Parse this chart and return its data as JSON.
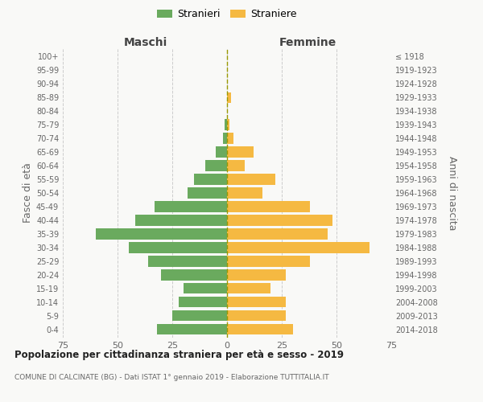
{
  "age_groups": [
    "100+",
    "95-99",
    "90-94",
    "85-89",
    "80-84",
    "75-79",
    "70-74",
    "65-69",
    "60-64",
    "55-59",
    "50-54",
    "45-49",
    "40-44",
    "35-39",
    "30-34",
    "25-29",
    "20-24",
    "15-19",
    "10-14",
    "5-9",
    "0-4"
  ],
  "birth_years": [
    "≤ 1918",
    "1919-1923",
    "1924-1928",
    "1929-1933",
    "1934-1938",
    "1939-1943",
    "1944-1948",
    "1949-1953",
    "1954-1958",
    "1959-1963",
    "1964-1968",
    "1969-1973",
    "1974-1978",
    "1979-1983",
    "1984-1988",
    "1989-1993",
    "1994-1998",
    "1999-2003",
    "2004-2008",
    "2009-2013",
    "2014-2018"
  ],
  "maschi": [
    0,
    0,
    0,
    0,
    0,
    1,
    2,
    5,
    10,
    15,
    18,
    33,
    42,
    60,
    45,
    36,
    30,
    20,
    22,
    25,
    32
  ],
  "femmine": [
    0,
    0,
    0,
    2,
    0,
    1,
    3,
    12,
    8,
    22,
    16,
    38,
    48,
    46,
    65,
    38,
    27,
    20,
    27,
    27,
    30
  ],
  "male_color": "#6aaa5e",
  "female_color": "#f5b942",
  "background_color": "#f9f9f7",
  "grid_color": "#cccccc",
  "title": "Popolazione per cittadinanza straniera per età e sesso - 2019",
  "subtitle": "COMUNE DI CALCINATE (BG) - Dati ISTAT 1° gennaio 2019 - Elaborazione TUTTITALIA.IT",
  "xlabel_left": "Maschi",
  "xlabel_right": "Femmine",
  "ylabel_left": "Fasce di età",
  "ylabel_right": "Anni di nascita",
  "legend_male": "Stranieri",
  "legend_female": "Straniere",
  "xlim": 75,
  "bar_height": 0.78
}
